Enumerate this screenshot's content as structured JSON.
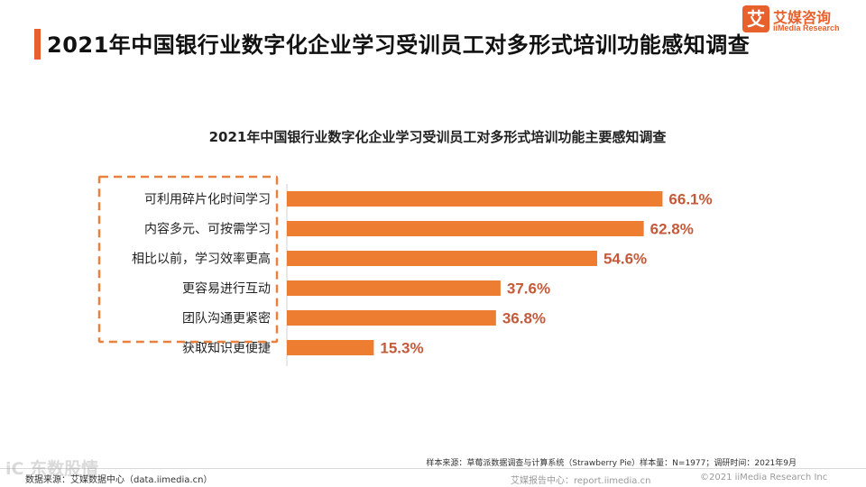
{
  "header": {
    "title": "2021年中国银行业数字化企业学习受训员工对多形式培训功能感知调查",
    "logo_mark": "艾",
    "logo_name": "艾媒咨询",
    "logo_sub": "iiMedia Research"
  },
  "colors": {
    "accent": "#e8612c",
    "bar": "#ed7d31",
    "value_label": "#c55a3a",
    "highlight_box": "#e8803f"
  },
  "chart_data": {
    "type": "bar",
    "orientation": "horizontal",
    "title": "2021年中国银行业数字化企业学习受训员工对多形式培训功能主要感知调查",
    "categories": [
      "可利用碎片化时间学习",
      "内容多元、可按需学习",
      "相比以前，学习效率更高",
      "更容易进行互动",
      "团队沟通更紧密",
      "获取知识更便捷"
    ],
    "values": [
      66.1,
      62.8,
      54.6,
      37.6,
      36.8,
      15.3
    ],
    "value_labels": [
      "66.1%",
      "62.8%",
      "54.6%",
      "37.6%",
      "36.8%",
      "15.3%"
    ],
    "unit": "%",
    "xlim": [
      0,
      100
    ],
    "highlighted_categories": 5
  },
  "notes": {
    "sample": "样本来源：草莓派数据调查与计算系统（Strawberry Pie）样本量：N=1977；调研时间：2021年9月",
    "source_left": "数据来源：艾媒数据中心（data.iimedia.cn）",
    "source_right": "艾媒报告中心：report.iimedia.cn",
    "copyright": "©2021  iiMedia Research  Inc",
    "watermark": "iC 东数股情"
  }
}
